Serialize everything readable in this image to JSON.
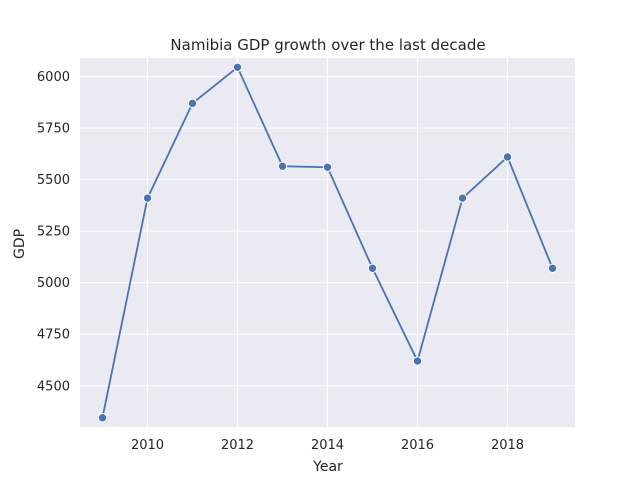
{
  "chart_data": {
    "type": "line",
    "title": "Namibia GDP growth over the last decade",
    "xlabel": "Year",
    "ylabel": "GDP",
    "x": [
      2009,
      2010,
      2011,
      2012,
      2013,
      2014,
      2015,
      2016,
      2017,
      2018,
      2019
    ],
    "series": [
      {
        "values": [
          4345,
          5410,
          5870,
          6045,
          5565,
          5560,
          5070,
          4620,
          5410,
          5610,
          5070
        ],
        "color": "#4c72b0",
        "marker": "circle"
      }
    ],
    "xlim": [
      2008.5,
      2019.5
    ],
    "ylim": [
      4300,
      6090
    ],
    "xticks": [
      2010,
      2012,
      2014,
      2016,
      2018
    ],
    "yticks": [
      4500,
      4750,
      5000,
      5250,
      5500,
      5750,
      6000
    ],
    "grid": true,
    "background_color": "#eaeaf2",
    "legend": "none"
  }
}
